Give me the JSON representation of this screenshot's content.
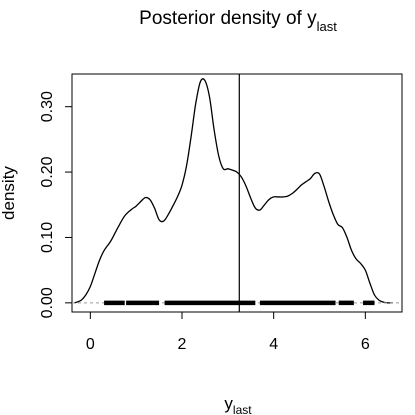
{
  "chart_data": {
    "type": "line",
    "title": {
      "main": "Posterior density of y",
      "sub": "last"
    },
    "xlabel": {
      "main": "y",
      "sub": "last"
    },
    "ylabel": "density",
    "xlim": [
      -0.4,
      6.8
    ],
    "ylim": [
      -0.014,
      0.35
    ],
    "xticks": [
      0,
      2,
      4,
      6
    ],
    "yticks": [
      0.0,
      0.1,
      0.2,
      0.3
    ],
    "ytick_labels": [
      "0.00",
      "0.10",
      "0.20",
      "0.30"
    ],
    "grid": false,
    "vline_x": 3.25,
    "rug_segments": [
      [
        0.3,
        0.75
      ],
      [
        0.78,
        1.5
      ],
      [
        1.62,
        3.6
      ],
      [
        3.7,
        5.35
      ],
      [
        5.42,
        5.75
      ],
      [
        5.95,
        6.2
      ]
    ],
    "x": [
      -0.35,
      -0.3,
      -0.2,
      -0.1,
      0.0,
      0.1,
      0.2,
      0.3,
      0.45,
      0.6,
      0.75,
      0.9,
      1.0,
      1.1,
      1.2,
      1.3,
      1.4,
      1.5,
      1.6,
      1.7,
      1.8,
      1.9,
      2.0,
      2.1,
      2.2,
      2.3,
      2.4,
      2.5,
      2.6,
      2.7,
      2.8,
      2.9,
      3.0,
      3.1,
      3.2,
      3.3,
      3.4,
      3.5,
      3.6,
      3.7,
      3.8,
      3.9,
      4.0,
      4.1,
      4.2,
      4.3,
      4.4,
      4.5,
      4.6,
      4.7,
      4.8,
      4.9,
      5.0,
      5.1,
      5.2,
      5.3,
      5.4,
      5.5,
      5.6,
      5.7,
      5.8,
      5.9,
      6.0,
      6.1,
      6.2,
      6.3,
      6.4,
      6.5,
      6.6
    ],
    "y": [
      0.0,
      0.001,
      0.004,
      0.012,
      0.025,
      0.045,
      0.065,
      0.08,
      0.095,
      0.115,
      0.133,
      0.143,
      0.148,
      0.155,
      0.161,
      0.158,
      0.145,
      0.127,
      0.125,
      0.135,
      0.148,
      0.162,
      0.18,
      0.21,
      0.255,
      0.305,
      0.338,
      0.34,
      0.315,
      0.265,
      0.225,
      0.205,
      0.205,
      0.203,
      0.2,
      0.192,
      0.178,
      0.16,
      0.145,
      0.142,
      0.15,
      0.158,
      0.162,
      0.162,
      0.162,
      0.163,
      0.167,
      0.173,
      0.18,
      0.185,
      0.19,
      0.198,
      0.197,
      0.178,
      0.155,
      0.135,
      0.12,
      0.115,
      0.1,
      0.08,
      0.067,
      0.06,
      0.05,
      0.03,
      0.012,
      0.004,
      0.001,
      0.0,
      0.0
    ]
  }
}
